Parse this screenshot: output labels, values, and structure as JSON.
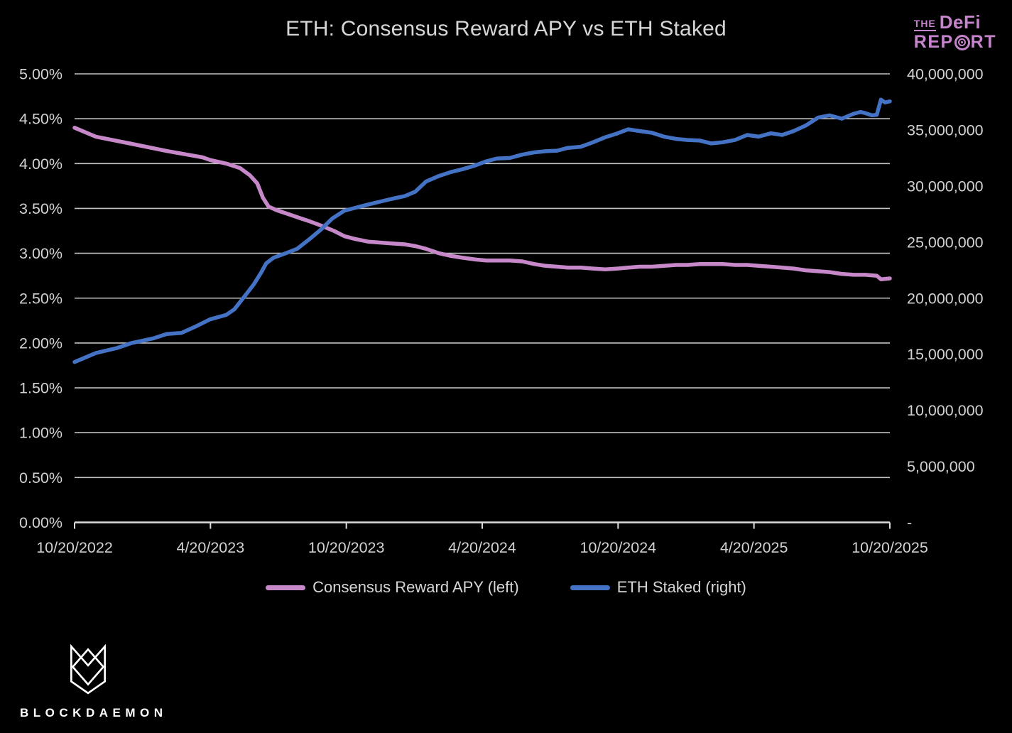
{
  "header": {
    "title": "ETH: Consensus Reward APY vs ETH Staked"
  },
  "brand": {
    "defi_report": {
      "the": "THE",
      "defi": "DeFi",
      "report_pre": "REP",
      "report_post": "RT",
      "color": "#c584cb"
    },
    "blockdaemon": {
      "label": "BLOCKDAEMON"
    }
  },
  "legend": {
    "items": [
      {
        "label": "Consensus Reward APY (left)",
        "color": "#c688c8"
      },
      {
        "label": "ETH Staked (right)",
        "color": "#4472c4"
      }
    ]
  },
  "chart_data": {
    "type": "line",
    "title": "ETH: Consensus Reward APY vs ETH Staked",
    "grid": true,
    "legend_position": "bottom",
    "background": "#000000",
    "gridline_color": "#c4c4c4",
    "axis_text_color": "#d2d2d2",
    "x_tick_labels": [
      "10/20/2022",
      "4/20/2023",
      "10/20/2023",
      "4/20/2024",
      "10/20/2024",
      "4/20/2025",
      "10/20/2025"
    ],
    "left_axis": {
      "name": "Consensus Reward APY",
      "min": 0,
      "max": 5,
      "unit": "%",
      "tick_labels_top_to_bottom": [
        "5.00%",
        "4.50%",
        "4.00%",
        "3.50%",
        "3.00%",
        "2.50%",
        "2.00%",
        "1.50%",
        "1.00%",
        "0.50%",
        "0.00%"
      ]
    },
    "right_axis": {
      "name": "ETH Staked",
      "min": 0,
      "max": 40000000,
      "tick_labels_top_to_bottom": [
        "40,000,000",
        "35,000,000",
        "30,000,000",
        "25,000,000",
        "20,000,000",
        "15,000,000",
        "10,000,000",
        "5,000,000",
        "-"
      ]
    },
    "series": [
      {
        "name": "Consensus Reward APY (left)",
        "axis": "left",
        "color": "#c688c8",
        "points": [
          [
            0.0,
            4.4
          ],
          [
            0.026,
            4.3
          ],
          [
            0.07,
            4.22
          ],
          [
            0.113,
            4.14
          ],
          [
            0.157,
            4.07
          ],
          [
            0.166,
            4.04
          ],
          [
            0.186,
            4.0
          ],
          [
            0.203,
            3.95
          ],
          [
            0.215,
            3.87
          ],
          [
            0.224,
            3.78
          ],
          [
            0.231,
            3.62
          ],
          [
            0.238,
            3.52
          ],
          [
            0.248,
            3.48
          ],
          [
            0.261,
            3.44
          ],
          [
            0.274,
            3.4
          ],
          [
            0.287,
            3.36
          ],
          [
            0.302,
            3.31
          ],
          [
            0.318,
            3.25
          ],
          [
            0.331,
            3.19
          ],
          [
            0.344,
            3.16
          ],
          [
            0.36,
            3.13
          ],
          [
            0.389,
            3.11
          ],
          [
            0.405,
            3.1
          ],
          [
            0.418,
            3.08
          ],
          [
            0.431,
            3.05
          ],
          [
            0.447,
            3.0
          ],
          [
            0.462,
            2.97
          ],
          [
            0.476,
            2.95
          ],
          [
            0.492,
            2.93
          ],
          [
            0.505,
            2.92
          ],
          [
            0.518,
            2.92
          ],
          [
            0.534,
            2.92
          ],
          [
            0.549,
            2.91
          ],
          [
            0.564,
            2.88
          ],
          [
            0.578,
            2.86
          ],
          [
            0.592,
            2.85
          ],
          [
            0.605,
            2.84
          ],
          [
            0.621,
            2.84
          ],
          [
            0.636,
            2.83
          ],
          [
            0.651,
            2.82
          ],
          [
            0.666,
            2.83
          ],
          [
            0.679,
            2.84
          ],
          [
            0.693,
            2.85
          ],
          [
            0.708,
            2.85
          ],
          [
            0.723,
            2.86
          ],
          [
            0.738,
            2.87
          ],
          [
            0.752,
            2.87
          ],
          [
            0.767,
            2.88
          ],
          [
            0.78,
            2.88
          ],
          [
            0.795,
            2.88
          ],
          [
            0.81,
            2.87
          ],
          [
            0.825,
            2.87
          ],
          [
            0.839,
            2.86
          ],
          [
            0.854,
            2.85
          ],
          [
            0.868,
            2.84
          ],
          [
            0.882,
            2.83
          ],
          [
            0.897,
            2.81
          ],
          [
            0.912,
            2.8
          ],
          [
            0.926,
            2.79
          ],
          [
            0.941,
            2.77
          ],
          [
            0.956,
            2.76
          ],
          [
            0.97,
            2.76
          ],
          [
            0.984,
            2.75
          ],
          [
            0.989,
            2.71
          ],
          [
            1.0,
            2.72
          ]
        ]
      },
      {
        "name": "ETH Staked (right)",
        "axis": "right",
        "color": "#4472c4",
        "points": [
          [
            0.0,
            14300000
          ],
          [
            0.026,
            15100000
          ],
          [
            0.052,
            15550000
          ],
          [
            0.07,
            16000000
          ],
          [
            0.096,
            16400000
          ],
          [
            0.113,
            16800000
          ],
          [
            0.131,
            16900000
          ],
          [
            0.148,
            17450000
          ],
          [
            0.166,
            18100000
          ],
          [
            0.186,
            18500000
          ],
          [
            0.196,
            19000000
          ],
          [
            0.209,
            20200000
          ],
          [
            0.22,
            21250000
          ],
          [
            0.229,
            22300000
          ],
          [
            0.235,
            23100000
          ],
          [
            0.244,
            23600000
          ],
          [
            0.259,
            24000000
          ],
          [
            0.273,
            24400000
          ],
          [
            0.287,
            25200000
          ],
          [
            0.302,
            26100000
          ],
          [
            0.316,
            27100000
          ],
          [
            0.331,
            27800000
          ],
          [
            0.36,
            28350000
          ],
          [
            0.389,
            28850000
          ],
          [
            0.405,
            29100000
          ],
          [
            0.418,
            29500000
          ],
          [
            0.431,
            30400000
          ],
          [
            0.447,
            30900000
          ],
          [
            0.462,
            31250000
          ],
          [
            0.476,
            31500000
          ],
          [
            0.49,
            31800000
          ],
          [
            0.505,
            32200000
          ],
          [
            0.518,
            32450000
          ],
          [
            0.534,
            32500000
          ],
          [
            0.549,
            32800000
          ],
          [
            0.564,
            33000000
          ],
          [
            0.578,
            33100000
          ],
          [
            0.592,
            33150000
          ],
          [
            0.605,
            33400000
          ],
          [
            0.621,
            33500000
          ],
          [
            0.636,
            33900000
          ],
          [
            0.651,
            34350000
          ],
          [
            0.666,
            34700000
          ],
          [
            0.679,
            35050000
          ],
          [
            0.693,
            34900000
          ],
          [
            0.708,
            34750000
          ],
          [
            0.723,
            34400000
          ],
          [
            0.738,
            34200000
          ],
          [
            0.752,
            34100000
          ],
          [
            0.767,
            34050000
          ],
          [
            0.781,
            33800000
          ],
          [
            0.795,
            33900000
          ],
          [
            0.81,
            34100000
          ],
          [
            0.825,
            34550000
          ],
          [
            0.839,
            34400000
          ],
          [
            0.854,
            34700000
          ],
          [
            0.868,
            34550000
          ],
          [
            0.882,
            34900000
          ],
          [
            0.897,
            35400000
          ],
          [
            0.912,
            36100000
          ],
          [
            0.926,
            36300000
          ],
          [
            0.941,
            36000000
          ],
          [
            0.956,
            36450000
          ],
          [
            0.964,
            36600000
          ],
          [
            0.97,
            36500000
          ],
          [
            0.978,
            36300000
          ],
          [
            0.984,
            36350000
          ],
          [
            0.989,
            37700000
          ],
          [
            0.994,
            37450000
          ],
          [
            1.0,
            37550000
          ]
        ]
      }
    ]
  }
}
